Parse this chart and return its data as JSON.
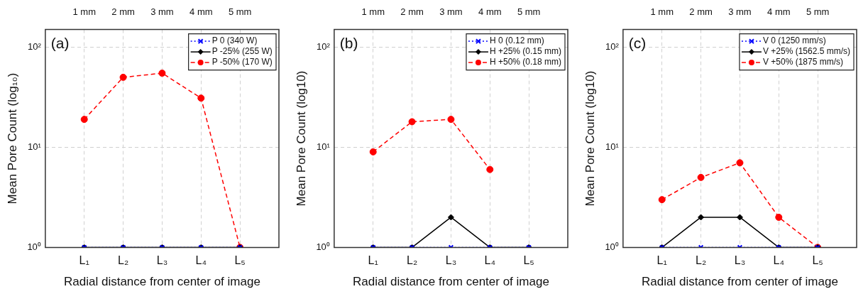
{
  "chart_data": [
    {
      "type": "line",
      "xlabel": "Radial distance from center of image",
      "ylabel": "Mean Pore Count (log₁₀)",
      "annotations": [
        "(a)"
      ],
      "categories": [
        "L₁",
        "L₂",
        "L₃",
        "L₄",
        "L₅"
      ],
      "x2lim": [
        0,
        6
      ],
      "x2ticks": [
        {
          "value": 1,
          "label": "1 mm"
        },
        {
          "value": 2,
          "label": "2 mm"
        },
        {
          "value": 3,
          "label": "3 mm"
        },
        {
          "value": 4,
          "label": "4 mm"
        },
        {
          "value": 5,
          "label": "5 mm"
        }
      ],
      "log": "y",
      "ylim": [
        1,
        150
      ],
      "yticks": [
        {
          "value": 1,
          "label": "10⁰"
        },
        {
          "value": 10,
          "label": "10¹"
        },
        {
          "value": 100,
          "label": "10²"
        }
      ],
      "grid": true,
      "legend": "top right",
      "series": [
        {
          "name": "P 0 (340 W)",
          "color": "#0000ff",
          "marker": "cross",
          "line_style": "dotted",
          "values": [
            1,
            1,
            1,
            1,
            1
          ]
        },
        {
          "name": "P -25% (255 W)",
          "color": "#000000",
          "marker": "diamond",
          "line_style": "solid",
          "values": [
            1,
            1,
            1,
            1,
            1
          ]
        },
        {
          "name": "P -50% (170 W)",
          "color": "#ff0000",
          "marker": "circle",
          "line_style": "dashed",
          "values": [
            19,
            50,
            55,
            31,
            1
          ]
        }
      ]
    },
    {
      "type": "line",
      "xlabel": "Radial distance from center of image",
      "ylabel": "Mean Pore Count (log10)",
      "annotations": [
        "(b)"
      ],
      "categories": [
        "L₁",
        "L₂",
        "L₃",
        "L₄",
        "L₅"
      ],
      "x2lim": [
        0,
        6
      ],
      "x2ticks": [
        {
          "value": 1,
          "label": "1 mm"
        },
        {
          "value": 2,
          "label": "2 mm"
        },
        {
          "value": 3,
          "label": "3 mm"
        },
        {
          "value": 4,
          "label": "4 mm"
        },
        {
          "value": 5,
          "label": "5 mm"
        }
      ],
      "log": "y",
      "ylim": [
        1,
        150
      ],
      "yticks": [
        {
          "value": 1,
          "label": "10⁰"
        },
        {
          "value": 10,
          "label": "10¹"
        },
        {
          "value": 100,
          "label": "10²"
        }
      ],
      "grid": true,
      "legend": "top right",
      "series": [
        {
          "name": "H 0 (0.12 mm)",
          "color": "#0000ff",
          "marker": "cross",
          "line_style": "dotted",
          "values": [
            1,
            1,
            1,
            1,
            1
          ]
        },
        {
          "name": "H +25% (0.15 mm)",
          "color": "#000000",
          "marker": "diamond",
          "line_style": "solid",
          "values": [
            1,
            1,
            2,
            1,
            1
          ]
        },
        {
          "name": "H +50% (0.18 mm)",
          "color": "#ff0000",
          "marker": "circle",
          "line_style": "dashed",
          "values": [
            9,
            18,
            19,
            6,
            null
          ]
        }
      ]
    },
    {
      "type": "line",
      "xlabel": "Radial distance from center of image",
      "ylabel": "Mean Pore Count (log10)",
      "annotations": [
        "(c)"
      ],
      "categories": [
        "L₁",
        "L₂",
        "L₃",
        "L₄",
        "L₅"
      ],
      "x2lim": [
        0,
        6
      ],
      "x2ticks": [
        {
          "value": 1,
          "label": "1 mm"
        },
        {
          "value": 2,
          "label": "2 mm"
        },
        {
          "value": 3,
          "label": "3 mm"
        },
        {
          "value": 4,
          "label": "4 mm"
        },
        {
          "value": 5,
          "label": "5 mm"
        }
      ],
      "log": "y",
      "ylim": [
        1,
        150
      ],
      "yticks": [
        {
          "value": 1,
          "label": "10⁰"
        },
        {
          "value": 10,
          "label": "10¹"
        },
        {
          "value": 100,
          "label": "10²"
        }
      ],
      "grid": true,
      "legend": "top right",
      "series": [
        {
          "name": "V 0 (1250 mm/s)",
          "color": "#0000ff",
          "marker": "cross",
          "line_style": "dotted",
          "values": [
            1,
            1,
            1,
            1,
            1
          ]
        },
        {
          "name": "V +25% (1562.5 mm/s)",
          "color": "#000000",
          "marker": "diamond",
          "line_style": "solid",
          "values": [
            1,
            2,
            2,
            1,
            1
          ]
        },
        {
          "name": "V +50% (1875 mm/s)",
          "color": "#ff0000",
          "marker": "circle",
          "line_style": "dashed",
          "values": [
            3,
            5,
            7,
            2,
            1
          ]
        }
      ]
    }
  ]
}
